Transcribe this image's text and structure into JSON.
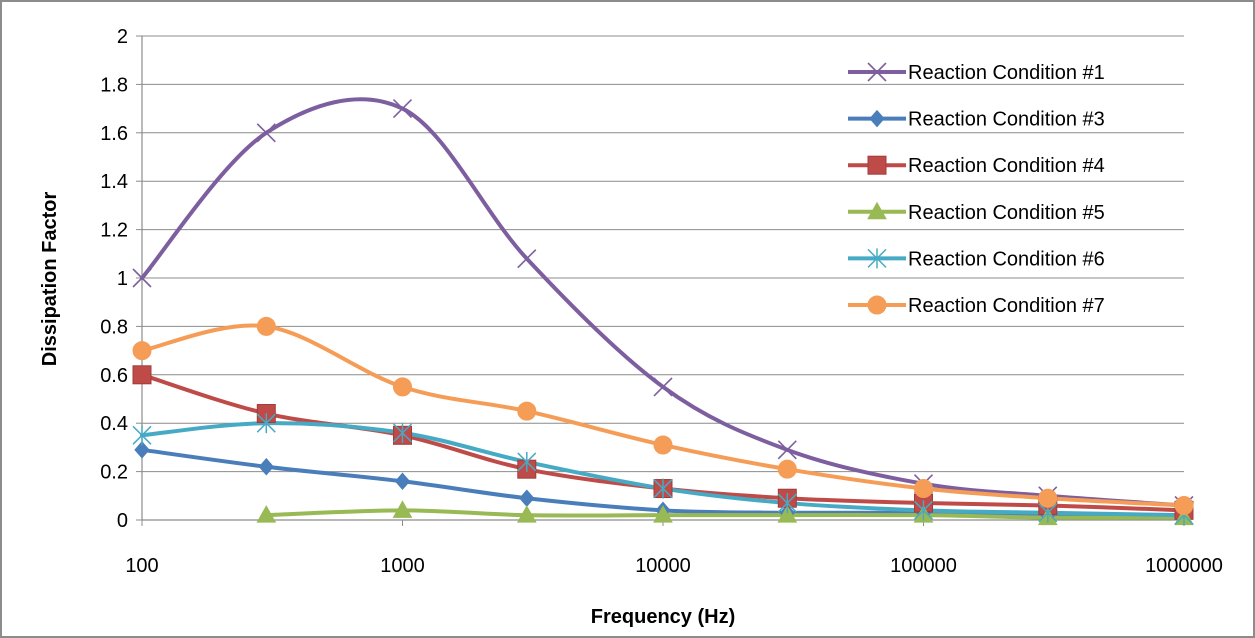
{
  "chart_data": {
    "type": "line",
    "xscale": "log",
    "xlabel": "Frequency (Hz)",
    "ylabel": "Dissipation Factor",
    "xlim": [
      100,
      1000000
    ],
    "ylim": [
      0,
      2
    ],
    "x_tick_labels": [
      "100",
      "1000",
      "10000",
      "100000",
      "1000000"
    ],
    "x_tick_values": [
      100,
      1000,
      10000,
      100000,
      1000000
    ],
    "y_tick_labels": [
      "0",
      "0.2",
      "0.4",
      "0.6",
      "0.8",
      "1",
      "1.2",
      "1.4",
      "1.6",
      "1.8",
      "2"
    ],
    "y_tick_values": [
      0,
      0.2,
      0.4,
      0.6,
      0.8,
      1.0,
      1.2,
      1.4,
      1.6,
      1.8,
      2.0
    ],
    "grid": "horizontal",
    "legend_position": "top-right",
    "series": [
      {
        "name": "Reaction Condition #1",
        "color": "#7d5fa0",
        "marker": "x",
        "x": [
          100,
          300,
          1000,
          3000,
          10000,
          30000,
          100000,
          300000,
          1000000
        ],
        "y": [
          1.0,
          1.6,
          1.7,
          1.08,
          0.55,
          0.29,
          0.15,
          0.1,
          0.06
        ]
      },
      {
        "name": "Reaction Condition #3",
        "color": "#4a7ebb",
        "marker": "diamond",
        "x": [
          100,
          300,
          1000,
          3000,
          10000,
          30000,
          100000,
          300000,
          1000000
        ],
        "y": [
          0.29,
          0.22,
          0.16,
          0.09,
          0.04,
          0.03,
          0.03,
          0.02,
          0.02
        ]
      },
      {
        "name": "Reaction Condition #4",
        "color": "#be4b48",
        "marker": "square",
        "x": [
          100,
          300,
          1000,
          3000,
          10000,
          30000,
          100000,
          300000,
          1000000
        ],
        "y": [
          0.6,
          0.44,
          0.35,
          0.21,
          0.13,
          0.09,
          0.07,
          0.06,
          0.04
        ]
      },
      {
        "name": "Reaction Condition #5",
        "color": "#98b954",
        "marker": "triangle",
        "x": [
          300,
          1000,
          3000,
          10000,
          30000,
          100000,
          300000,
          1000000
        ],
        "y": [
          0.02,
          0.04,
          0.02,
          0.02,
          0.02,
          0.02,
          0.01,
          0.01
        ]
      },
      {
        "name": "Reaction Condition #6",
        "color": "#46aac5",
        "marker": "star",
        "x": [
          100,
          300,
          1000,
          3000,
          10000,
          30000,
          100000,
          300000,
          1000000
        ],
        "y": [
          0.35,
          0.4,
          0.36,
          0.24,
          0.13,
          0.07,
          0.04,
          0.03,
          0.02
        ]
      },
      {
        "name": "Reaction Condition #7",
        "color": "#f59d56",
        "marker": "circle",
        "x": [
          100,
          300,
          1000,
          3000,
          10000,
          30000,
          100000,
          300000,
          1000000
        ],
        "y": [
          0.7,
          0.8,
          0.55,
          0.45,
          0.31,
          0.21,
          0.13,
          0.09,
          0.06
        ]
      }
    ]
  }
}
